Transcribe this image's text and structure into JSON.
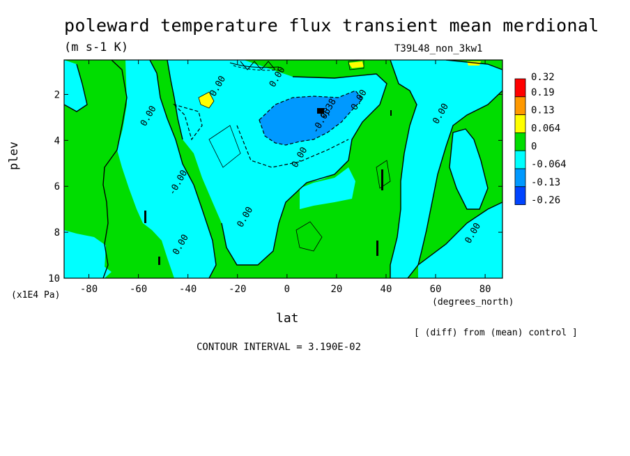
{
  "chart_data": {
    "type": "heatmap",
    "title": "poleward temperature flux transient mean merdional",
    "units": "(m s-1 K)",
    "run_label": "T39L48_non_3kw1",
    "xlabel": "lat",
    "x_unit_label": "(degrees_north)",
    "ylabel": "plev",
    "y_unit_label": "(x1E4 Pa)",
    "xlim": [
      -90,
      87
    ],
    "ylim": [
      10,
      0.5
    ],
    "x_ticks": [
      -80,
      -60,
      -40,
      -20,
      0,
      20,
      40,
      60,
      80
    ],
    "x_tick_labels": [
      "-80",
      "-60",
      "-40",
      "-20",
      "0",
      "20",
      "40",
      "60",
      "80"
    ],
    "y_ticks": [
      2,
      4,
      6,
      8,
      10
    ],
    "y_tick_labels": [
      "2",
      "4",
      "6",
      "8",
      "10"
    ],
    "colorbar": {
      "levels": [
        "0.32",
        "0.19",
        "0.13",
        "0.064",
        "0",
        "-0.064",
        "-0.13",
        "-0.26"
      ],
      "colors": [
        "#ff0000",
        "#ff9900",
        "#ffff00",
        "#00dd00",
        "#00ffff",
        "#0099ff",
        "#0044ff"
      ]
    },
    "contour_labels": [
      {
        "text": "0.00",
        "lat": -55,
        "plev": 3.0
      },
      {
        "text": "0.00",
        "lat": -27,
        "plev": 1.7
      },
      {
        "text": "0.00",
        "lat": -3,
        "plev": 1.3
      },
      {
        "text": "-0.0638",
        "lat": 16,
        "plev": 3.0
      },
      {
        "text": "0.00",
        "lat": 30,
        "plev": 2.3
      },
      {
        "text": "0.00",
        "lat": 6,
        "plev": 4.8
      },
      {
        "text": "-0.00",
        "lat": -43,
        "plev": 5.9
      },
      {
        "text": "0.00",
        "lat": -16,
        "plev": 7.4
      },
      {
        "text": "0.00",
        "lat": -42,
        "plev": 8.6
      },
      {
        "text": "0.00",
        "lat": 63,
        "plev": 2.9
      },
      {
        "text": "0.00",
        "lat": 76,
        "plev": 8.1
      }
    ],
    "diff_note": "[ (diff) from (mean) control ]",
    "contour_interval": "CONTOUR INTERVAL = 3.190E-02"
  }
}
